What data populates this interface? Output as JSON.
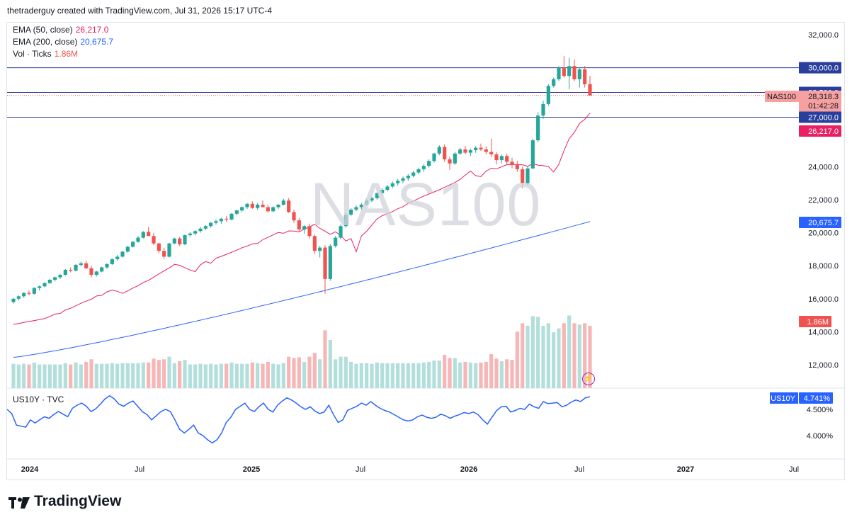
{
  "header": {
    "text": "thetraderguy created with TradingView.com, Jul 31, 2026 15:17 UTC-4"
  },
  "legend": {
    "ema50_label": "EMA (50, close)",
    "ema50_value": "26,217.0",
    "ema200_label": "EMA (200, close)",
    "ema200_value": "20,675.7",
    "vol_label": "Vol · Ticks",
    "vol_value": "1.86M",
    "us10y_label": "US10Y · TVC"
  },
  "watermark": "NAS100",
  "brand": "TradingView",
  "price_axis_labels": [
    "32,000.0",
    "24,000.0",
    "22,000.0",
    "20,000.0",
    "18,000.0",
    "16,000.0",
    "14,000.0",
    "12,000.0"
  ],
  "lower_axis_labels": [
    "4.500%",
    "4.000%"
  ],
  "price_tags": {
    "h30000": "30,000.0",
    "h28500": "28,500.0",
    "symbol": "NAS100",
    "last": "28,318.3",
    "countdown": "01:42:28",
    "h27000": "27,000.0",
    "ema50": "26,217.0",
    "ema200": "20,675.7",
    "vol": "1.86M",
    "us10y_symbol": "US10Y",
    "us10y_value": "4.741%"
  },
  "time_axis_labels": [
    "2024",
    "Jul",
    "2025",
    "Jul",
    "2026",
    "Jul",
    "2027",
    "Jul"
  ],
  "colors": {
    "up": "#26a69a",
    "down": "#ef5350",
    "ema50": "#e91e63",
    "ema200": "#2962ff",
    "hline": "#2a3f9d",
    "yield": "#2962ff",
    "vol_up": "#b2dfdb",
    "vol_down": "#f7b6b6"
  },
  "chart_data": {
    "type": "candlestick",
    "timeframe": "weekly",
    "x_range": [
      "2024-01",
      "2027-07"
    ],
    "ylim": [
      11000,
      33000
    ],
    "horizontal_levels": [
      30000,
      28500,
      27000
    ],
    "candles_ohlc_approx": [
      [
        15800,
        16050,
        15700,
        16000
      ],
      [
        16000,
        16200,
        15900,
        16150
      ],
      [
        16150,
        16400,
        16050,
        16350
      ],
      [
        16350,
        16500,
        16200,
        16300
      ],
      [
        16300,
        16700,
        16250,
        16650
      ],
      [
        16650,
        16800,
        16500,
        16750
      ],
      [
        16750,
        17000,
        16700,
        16950
      ],
      [
        16950,
        17200,
        16900,
        17150
      ],
      [
        17150,
        17350,
        17050,
        17300
      ],
      [
        17300,
        17500,
        17200,
        17450
      ],
      [
        17450,
        17800,
        17400,
        17750
      ],
      [
        17750,
        17900,
        17600,
        17700
      ],
      [
        17700,
        18100,
        17650,
        18050
      ],
      [
        18050,
        18250,
        17950,
        18150
      ],
      [
        18150,
        18300,
        17800,
        17850
      ],
      [
        17850,
        18000,
        17300,
        17450
      ],
      [
        17450,
        17700,
        17350,
        17650
      ],
      [
        17650,
        17950,
        17600,
        17900
      ],
      [
        17900,
        18150,
        17800,
        18100
      ],
      [
        18100,
        18450,
        18050,
        18400
      ],
      [
        18400,
        18650,
        18300,
        18550
      ],
      [
        18550,
        18900,
        18500,
        18850
      ],
      [
        18850,
        19200,
        18800,
        19150
      ],
      [
        19150,
        19500,
        19100,
        19450
      ],
      [
        19450,
        19800,
        19400,
        19700
      ],
      [
        19700,
        20100,
        19650,
        20050
      ],
      [
        20050,
        20350,
        19900,
        19800
      ],
      [
        19800,
        20000,
        19250,
        19350
      ],
      [
        19350,
        19400,
        18750,
        18900
      ],
      [
        18900,
        19100,
        18400,
        18550
      ],
      [
        18550,
        19400,
        18500,
        19350
      ],
      [
        19350,
        19700,
        19300,
        19650
      ],
      [
        19650,
        19750,
        19200,
        19300
      ],
      [
        19300,
        19900,
        19250,
        19850
      ],
      [
        19850,
        20050,
        19750,
        19950
      ],
      [
        19950,
        20150,
        19850,
        20100
      ],
      [
        20100,
        20350,
        20000,
        20250
      ],
      [
        20250,
        20450,
        20150,
        20400
      ],
      [
        20400,
        20650,
        20300,
        20600
      ],
      [
        20600,
        20800,
        20500,
        20700
      ],
      [
        20700,
        20900,
        20550,
        20850
      ],
      [
        20850,
        21000,
        20650,
        20800
      ],
      [
        20800,
        21200,
        20750,
        21150
      ],
      [
        21150,
        21400,
        21050,
        21350
      ],
      [
        21350,
        21600,
        21250,
        21550
      ],
      [
        21550,
        21800,
        21450,
        21750
      ],
      [
        21750,
        21900,
        21450,
        21500
      ],
      [
        21500,
        21800,
        21400,
        21700
      ],
      [
        21700,
        21950,
        21600,
        21550
      ],
      [
        21550,
        21700,
        21200,
        21300
      ],
      [
        21300,
        21600,
        21250,
        21550
      ],
      [
        21550,
        21750,
        21450,
        21700
      ],
      [
        21700,
        22050,
        21650,
        21950
      ],
      [
        21950,
        22100,
        21200,
        21250
      ],
      [
        21250,
        21400,
        20600,
        20750
      ],
      [
        20750,
        20900,
        20050,
        20200
      ],
      [
        20200,
        20450,
        19950,
        20400
      ],
      [
        20400,
        20550,
        19650,
        19800
      ],
      [
        19800,
        19900,
        18700,
        18900
      ],
      [
        18900,
        19200,
        18500,
        19100
      ],
      [
        19100,
        19250,
        16300,
        17200
      ],
      [
        17200,
        19300,
        17100,
        19200
      ],
      [
        19200,
        19800,
        19100,
        19700
      ],
      [
        19700,
        20500,
        19600,
        20400
      ],
      [
        20400,
        21200,
        20300,
        21100
      ],
      [
        21100,
        21500,
        21000,
        21400
      ],
      [
        21400,
        21650,
        21300,
        21550
      ],
      [
        21550,
        21800,
        21400,
        21700
      ],
      [
        21700,
        22050,
        21650,
        21950
      ],
      [
        21950,
        22200,
        21850,
        22100
      ],
      [
        22100,
        22450,
        22000,
        22400
      ],
      [
        22400,
        22700,
        22300,
        22600
      ],
      [
        22600,
        22900,
        22500,
        22800
      ],
      [
        22800,
        23100,
        22700,
        23000
      ],
      [
        23000,
        23250,
        22850,
        23150
      ],
      [
        23150,
        23400,
        23000,
        23300
      ],
      [
        23300,
        23550,
        23150,
        23450
      ],
      [
        23450,
        23750,
        23350,
        23650
      ],
      [
        23650,
        23950,
        23550,
        23850
      ],
      [
        23850,
        24150,
        23700,
        24050
      ],
      [
        24050,
        24450,
        23950,
        24350
      ],
      [
        24350,
        24850,
        24250,
        24800
      ],
      [
        24800,
        25300,
        24700,
        25200
      ],
      [
        25200,
        25350,
        24300,
        24450
      ],
      [
        24450,
        24600,
        23800,
        24200
      ],
      [
        24200,
        24900,
        24100,
        24800
      ],
      [
        24800,
        25150,
        24700,
        25050
      ],
      [
        25050,
        25250,
        24750,
        24850
      ],
      [
        24850,
        25100,
        24650,
        25000
      ],
      [
        25000,
        25250,
        24850,
        25150
      ],
      [
        25150,
        25400,
        24950,
        25050
      ],
      [
        25050,
        25250,
        24750,
        24900
      ],
      [
        24900,
        25700,
        24600,
        24750
      ],
      [
        24750,
        24900,
        24150,
        24400
      ],
      [
        24400,
        24750,
        24200,
        24650
      ],
      [
        24650,
        24800,
        24100,
        24300
      ],
      [
        24300,
        24550,
        23900,
        24100
      ],
      [
        24100,
        24350,
        23700,
        23850
      ],
      [
        23850,
        24000,
        22700,
        23000
      ],
      [
        23000,
        24000,
        22900,
        23900
      ],
      [
        23900,
        25700,
        23850,
        25600
      ],
      [
        25600,
        27300,
        25500,
        27100
      ],
      [
        27100,
        28000,
        26900,
        27800
      ],
      [
        27800,
        29000,
        27700,
        28900
      ],
      [
        28900,
        29400,
        28800,
        29300
      ],
      [
        29300,
        30100,
        29200,
        30000
      ],
      [
        30000,
        30700,
        29400,
        29500
      ],
      [
        29500,
        30600,
        28700,
        30100
      ],
      [
        30100,
        30500,
        29200,
        29300
      ],
      [
        29300,
        30000,
        28800,
        29900
      ],
      [
        29900,
        30100,
        28800,
        29000
      ],
      [
        29000,
        29500,
        28400,
        28318
      ]
    ],
    "ema50": {
      "start": 14400,
      "end": 26217
    },
    "ema200": {
      "start": 12450,
      "end": 20675.7
    },
    "volume_last": "1.86M",
    "us10y": {
      "ylim_pct": [
        3.7,
        4.9
      ],
      "last": 4.741,
      "values": [
        4.5,
        4.42,
        4.2,
        4.18,
        4.16,
        4.3,
        4.24,
        4.3,
        4.36,
        4.33,
        4.4,
        4.46,
        4.41,
        4.36,
        4.52,
        4.58,
        4.62,
        4.56,
        4.46,
        4.51,
        4.6,
        4.7,
        4.76,
        4.7,
        4.6,
        4.56,
        4.62,
        4.66,
        4.56,
        4.46,
        4.4,
        4.3,
        4.38,
        4.46,
        4.5,
        4.46,
        4.3,
        4.12,
        4.05,
        4.12,
        4.2,
        4.05,
        4.0,
        3.92,
        3.86,
        3.92,
        4.05,
        4.25,
        4.35,
        4.5,
        4.56,
        4.62,
        4.5,
        4.46,
        4.55,
        4.62,
        4.5,
        4.45,
        4.58,
        4.66,
        4.72,
        4.68,
        4.62,
        4.55,
        4.5,
        4.55,
        4.47,
        4.42,
        4.45,
        4.58,
        4.4,
        4.25,
        4.3,
        4.48,
        4.52,
        4.56,
        4.62,
        4.58,
        4.65,
        4.58,
        4.52,
        4.48,
        4.45,
        4.4,
        4.35,
        4.3,
        4.28,
        4.3,
        4.36,
        4.39,
        4.35,
        4.33,
        4.35,
        4.41,
        4.38,
        4.33,
        4.37,
        4.4,
        4.44,
        4.42,
        4.45,
        4.4,
        4.3,
        4.22,
        4.35,
        4.48,
        4.55,
        4.56,
        4.45,
        4.48,
        4.52,
        4.5,
        4.6,
        4.55,
        4.52,
        4.65,
        4.61,
        4.62,
        4.63,
        4.55,
        4.58,
        4.64,
        4.68,
        4.65,
        4.72,
        4.741
      ]
    }
  }
}
